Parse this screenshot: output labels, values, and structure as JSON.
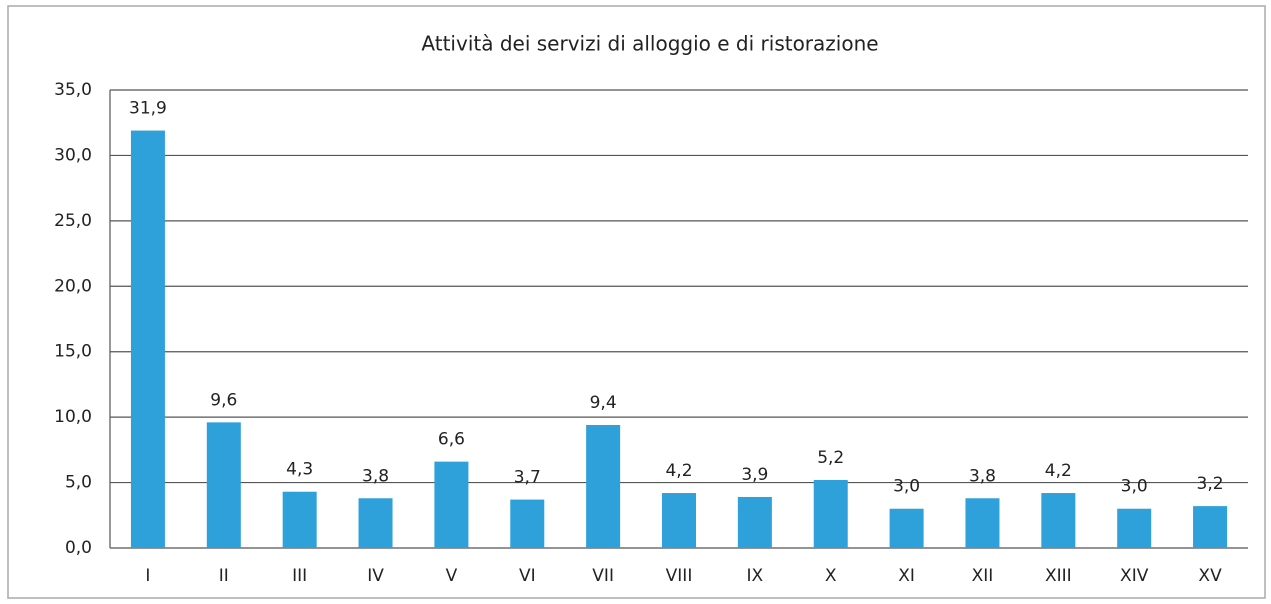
{
  "chart_data": {
    "type": "bar",
    "title": "Attività dei servizi di alloggio e di ristorazione",
    "categories": [
      "I",
      "II",
      "III",
      "IV",
      "V",
      "VI",
      "VII",
      "VIII",
      "IX",
      "X",
      "XI",
      "XII",
      "XIII",
      "XIV",
      "XV"
    ],
    "values": [
      31.9,
      9.6,
      4.3,
      3.8,
      6.6,
      3.7,
      9.4,
      4.2,
      3.9,
      5.2,
      3.0,
      3.8,
      4.2,
      3.0,
      3.2
    ],
    "value_labels": [
      "31,9",
      "9,6",
      "4,3",
      "3,8",
      "6,6",
      "3,7",
      "9,4",
      "4,2",
      "3,9",
      "5,2",
      "3,0",
      "3,8",
      "4,2",
      "3,0",
      "3,2"
    ],
    "color": "#2ea0da",
    "ylim": [
      0,
      35
    ],
    "yticks": [
      {
        "value": 0,
        "label": "0,0"
      },
      {
        "value": 5,
        "label": "5,0"
      },
      {
        "value": 10,
        "label": "10,0"
      },
      {
        "value": 15,
        "label": "15,0"
      },
      {
        "value": 20,
        "label": "20,0"
      },
      {
        "value": 25,
        "label": "25,0"
      },
      {
        "value": 30,
        "label": "30,0"
      },
      {
        "value": 35,
        "label": "35,0"
      }
    ],
    "grid": true
  }
}
